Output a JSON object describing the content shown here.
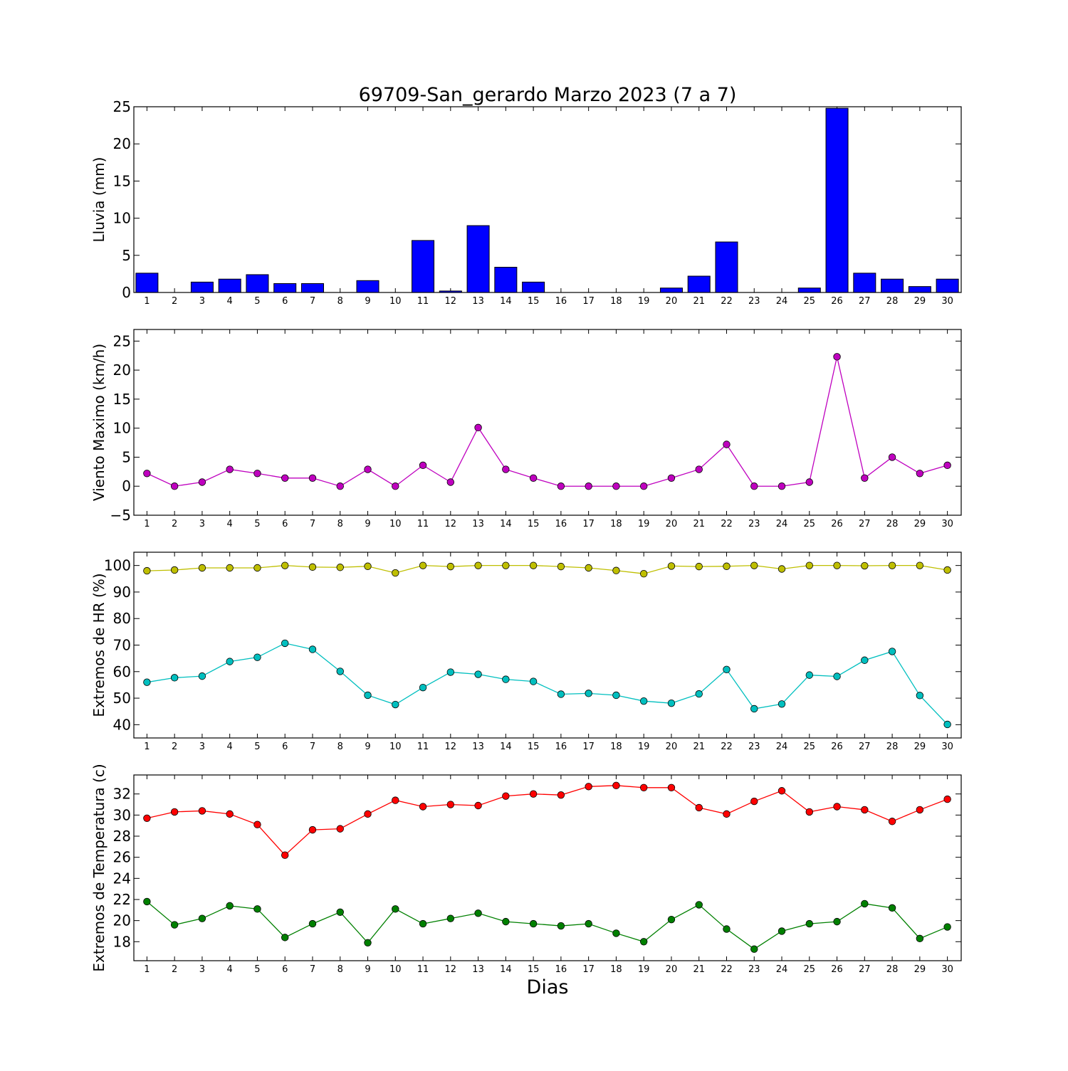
{
  "chart_data": [
    {
      "type": "bar",
      "title": "69709-San_gerardo Marzo 2023  (7 a 7)",
      "ylabel": "Lluvia (mm)",
      "ylim": [
        0,
        25
      ],
      "yticks": [
        0,
        5,
        10,
        15,
        20,
        25
      ],
      "categories": [
        "1",
        "2",
        "3",
        "4",
        "5",
        "6",
        "7",
        "8",
        "9",
        "10",
        "11",
        "12",
        "13",
        "14",
        "15",
        "16",
        "17",
        "18",
        "19",
        "20",
        "21",
        "22",
        "23",
        "24",
        "25",
        "26",
        "27",
        "28",
        "29",
        "30"
      ],
      "values": [
        2.6,
        0,
        1.4,
        1.8,
        2.4,
        1.2,
        1.2,
        0,
        1.6,
        0,
        7.0,
        0.2,
        9.0,
        3.4,
        1.4,
        0,
        0,
        0,
        0,
        0.6,
        2.2,
        6.8,
        0,
        0,
        0.6,
        24.8,
        2.6,
        1.8,
        0.8,
        1.8
      ],
      "colors": {
        "bar": "#0000ff"
      }
    },
    {
      "type": "line",
      "ylabel": "Viento Maximo (km/h)",
      "ylim": [
        -5,
        27
      ],
      "yticks": [
        -5,
        0,
        5,
        10,
        15,
        20,
        25
      ],
      "ytick_labels": [
        "−5",
        "0",
        "5",
        "10",
        "15",
        "20",
        "25"
      ],
      "categories": [
        "1",
        "2",
        "3",
        "4",
        "5",
        "6",
        "7",
        "8",
        "9",
        "10",
        "11",
        "12",
        "13",
        "14",
        "15",
        "16",
        "17",
        "18",
        "19",
        "20",
        "21",
        "22",
        "23",
        "24",
        "25",
        "26",
        "27",
        "28",
        "29",
        "30"
      ],
      "series": [
        {
          "values": [
            2.2,
            0,
            0.7,
            2.9,
            2.2,
            1.4,
            1.4,
            0,
            2.9,
            0,
            3.6,
            0.7,
            10.1,
            2.9,
            1.4,
            0,
            0,
            0,
            0,
            1.4,
            2.9,
            7.2,
            0,
            0,
            0.7,
            22.3,
            1.4,
            5.0,
            2.2,
            3.6
          ],
          "color": "#bf00bf"
        }
      ]
    },
    {
      "type": "line",
      "ylabel": "Extremos de HR (%)",
      "ylim": [
        35,
        105
      ],
      "yticks": [
        40,
        50,
        60,
        70,
        80,
        90,
        100
      ],
      "categories": [
        "1",
        "2",
        "3",
        "4",
        "5",
        "6",
        "7",
        "8",
        "9",
        "10",
        "11",
        "12",
        "13",
        "14",
        "15",
        "16",
        "17",
        "18",
        "19",
        "20",
        "21",
        "22",
        "23",
        "24",
        "25",
        "26",
        "27",
        "28",
        "29",
        "30"
      ],
      "series": [
        {
          "values": [
            98,
            98.3,
            99.1,
            99.1,
            99.1,
            100,
            99.4,
            99.3,
            99.7,
            97.2,
            100,
            99.6,
            100,
            100,
            100,
            99.6,
            99.1,
            98.1,
            96.9,
            99.8,
            99.6,
            99.7,
            100,
            98.7,
            100,
            100,
            99.9,
            100,
            100,
            98.3
          ],
          "color": "#bfbf00"
        },
        {
          "values": [
            56,
            57.7,
            58.3,
            63.8,
            65.4,
            70.7,
            68.4,
            60.1,
            51.1,
            47.6,
            54,
            59.8,
            59,
            57.1,
            56.3,
            51.5,
            51.8,
            51.1,
            48.9,
            48.1,
            51.6,
            60.8,
            46,
            47.8,
            58.7,
            58.2,
            64.3,
            67.6,
            51,
            40.1
          ],
          "color": "#00bfbf"
        }
      ]
    },
    {
      "type": "line",
      "ylabel": "Extremos de Temperatura (c)",
      "xlabel": "Dias",
      "ylim": [
        16.2,
        33.8
      ],
      "yticks": [
        18,
        20,
        22,
        24,
        26,
        28,
        30,
        32
      ],
      "categories": [
        "1",
        "2",
        "3",
        "4",
        "5",
        "6",
        "7",
        "8",
        "9",
        "10",
        "11",
        "12",
        "13",
        "14",
        "15",
        "16",
        "17",
        "18",
        "19",
        "20",
        "21",
        "22",
        "23",
        "24",
        "25",
        "26",
        "27",
        "28",
        "29",
        "30"
      ],
      "series": [
        {
          "values": [
            29.7,
            30.3,
            30.4,
            30.1,
            29.1,
            26.2,
            28.6,
            28.7,
            30.1,
            31.4,
            30.8,
            31.0,
            30.9,
            31.8,
            32.0,
            31.9,
            32.7,
            32.8,
            32.6,
            32.6,
            30.7,
            30.1,
            31.3,
            32.3,
            30.3,
            30.8,
            30.5,
            29.4,
            30.5,
            31.5
          ],
          "color": "#ff0000"
        },
        {
          "values": [
            21.8,
            19.6,
            20.2,
            21.4,
            21.1,
            18.4,
            19.7,
            20.8,
            17.9,
            21.1,
            19.7,
            20.2,
            20.7,
            19.9,
            19.7,
            19.5,
            19.7,
            18.8,
            18.0,
            20.1,
            21.5,
            19.2,
            17.3,
            19.0,
            19.7,
            19.9,
            21.6,
            21.2,
            18.3,
            19.4
          ],
          "color": "#008000"
        }
      ]
    }
  ]
}
